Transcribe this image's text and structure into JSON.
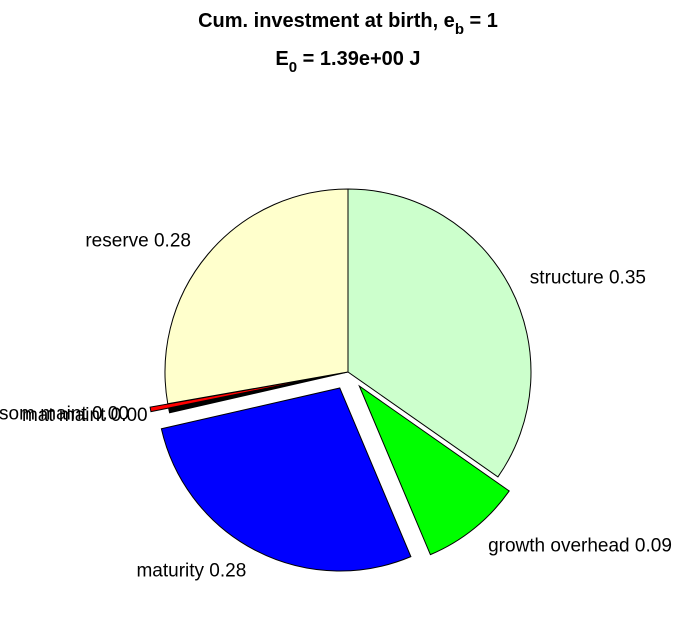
{
  "chart_data": {
    "type": "pie",
    "title": {
      "text": "Cum. investment at birth, e",
      "subscript": "b",
      "rest": " = 1"
    },
    "subtitle": {
      "text": "E",
      "subscript": "0",
      "rest": " = 1.39e+00 J"
    },
    "categories": [
      "structure",
      "growth overhead",
      "maturity",
      "mat maint",
      "som maint",
      "reserve"
    ],
    "values": [
      0.35,
      0.09,
      0.28,
      0.004,
      0.004,
      0.28
    ],
    "value_labels": [
      "structure 0.35",
      "growth overhead 0.09",
      "maturity 0.28",
      "mat maint 0.00",
      "som maint 0.00",
      "reserve 0.28"
    ],
    "colors": [
      "#ccffcc",
      "#00ff00",
      "#0000ff",
      "#000000",
      "#ff0000",
      "#ffffcc"
    ],
    "explode": [
      false,
      true,
      true,
      false,
      true,
      false
    ]
  }
}
